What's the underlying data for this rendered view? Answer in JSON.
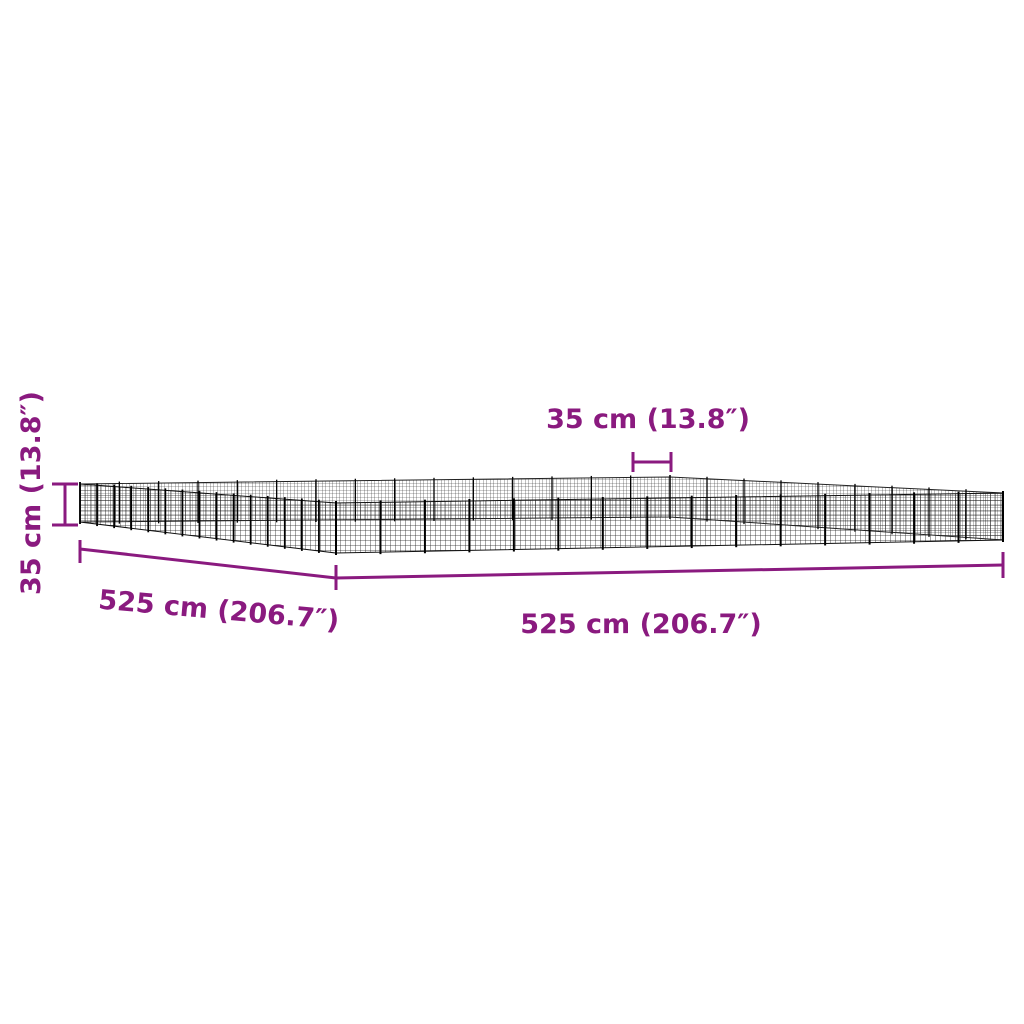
{
  "colors": {
    "dimension": "#8a1a7f",
    "pen": "#111111",
    "background": "#ffffff"
  },
  "dimensions": {
    "height_label": "35 cm (13.8″)",
    "panel_width_label": "35 cm (13.8″)",
    "depth_label": "525 cm (206.7″)",
    "width_label": "525 cm (206.7″)"
  }
}
